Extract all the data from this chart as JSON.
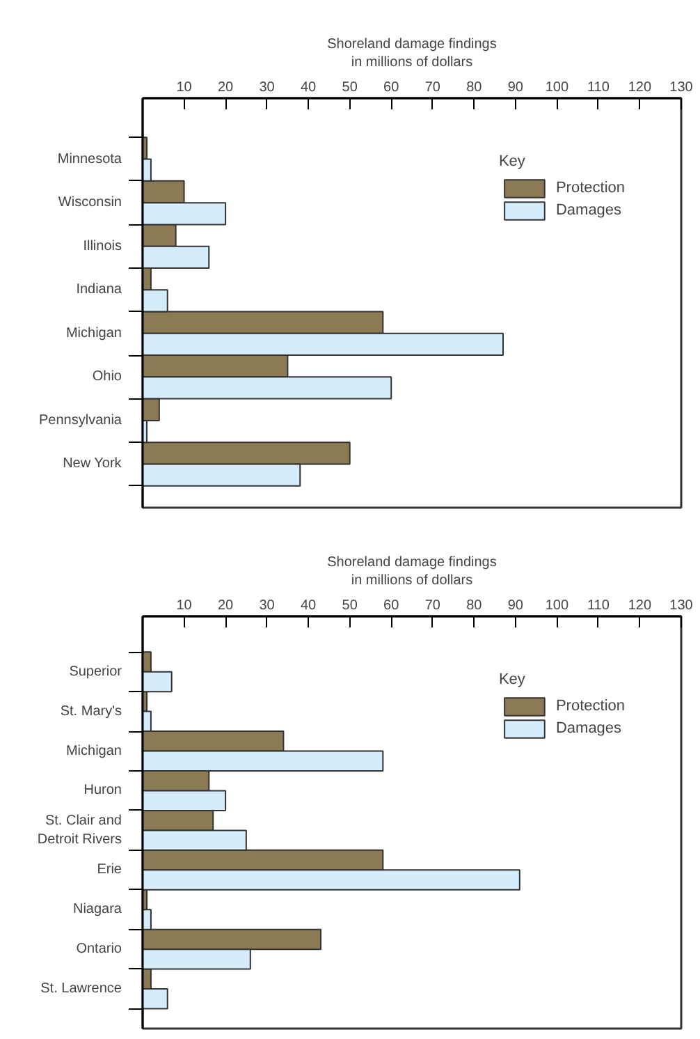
{
  "chart_data": [
    {
      "type": "bar",
      "orientation": "horizontal",
      "xlabel": "Shoreland damage findings\nin millions of dollars",
      "legend_title": "Key",
      "legend": "top right",
      "grid": false,
      "categories": [
        "Minnesota",
        "Wisconsin",
        "Illinois",
        "Indiana",
        "Michigan",
        "Ohio",
        "Pennsylvania",
        "New York"
      ],
      "xlim": [
        0,
        130
      ],
      "xticks": [
        10,
        20,
        30,
        40,
        50,
        60,
        70,
        80,
        90,
        100,
        110,
        120,
        130
      ],
      "series": [
        {
          "name": "Protection",
          "color": "#8c7a55",
          "values": [
            1,
            10,
            8,
            2,
            58,
            35,
            4,
            50
          ]
        },
        {
          "name": "Damages",
          "color": "#d4ecfb",
          "values": [
            2,
            20,
            16,
            6,
            87,
            60,
            1,
            38
          ]
        }
      ]
    },
    {
      "type": "bar",
      "orientation": "horizontal",
      "xlabel": "Shoreland damage findings\nin millions of dollars",
      "legend_title": "Key",
      "legend": "top right",
      "grid": false,
      "categories": [
        "Superior",
        "St. Mary's",
        "Michigan",
        "Huron",
        "St. Clair and\nDetroit Rivers",
        "Erie",
        "Niagara",
        "Ontario",
        "St. Lawrence"
      ],
      "xlim": [
        0,
        130
      ],
      "xticks": [
        10,
        20,
        30,
        40,
        50,
        60,
        70,
        80,
        90,
        100,
        110,
        120,
        130
      ],
      "series": [
        {
          "name": "Protection",
          "color": "#8c7a55",
          "values": [
            2,
            1,
            34,
            16,
            17,
            58,
            1,
            43,
            2
          ]
        },
        {
          "name": "Damages",
          "color": "#d4ecfb",
          "values": [
            7,
            2,
            58,
            20,
            25,
            91,
            2,
            26,
            6
          ]
        }
      ]
    }
  ]
}
